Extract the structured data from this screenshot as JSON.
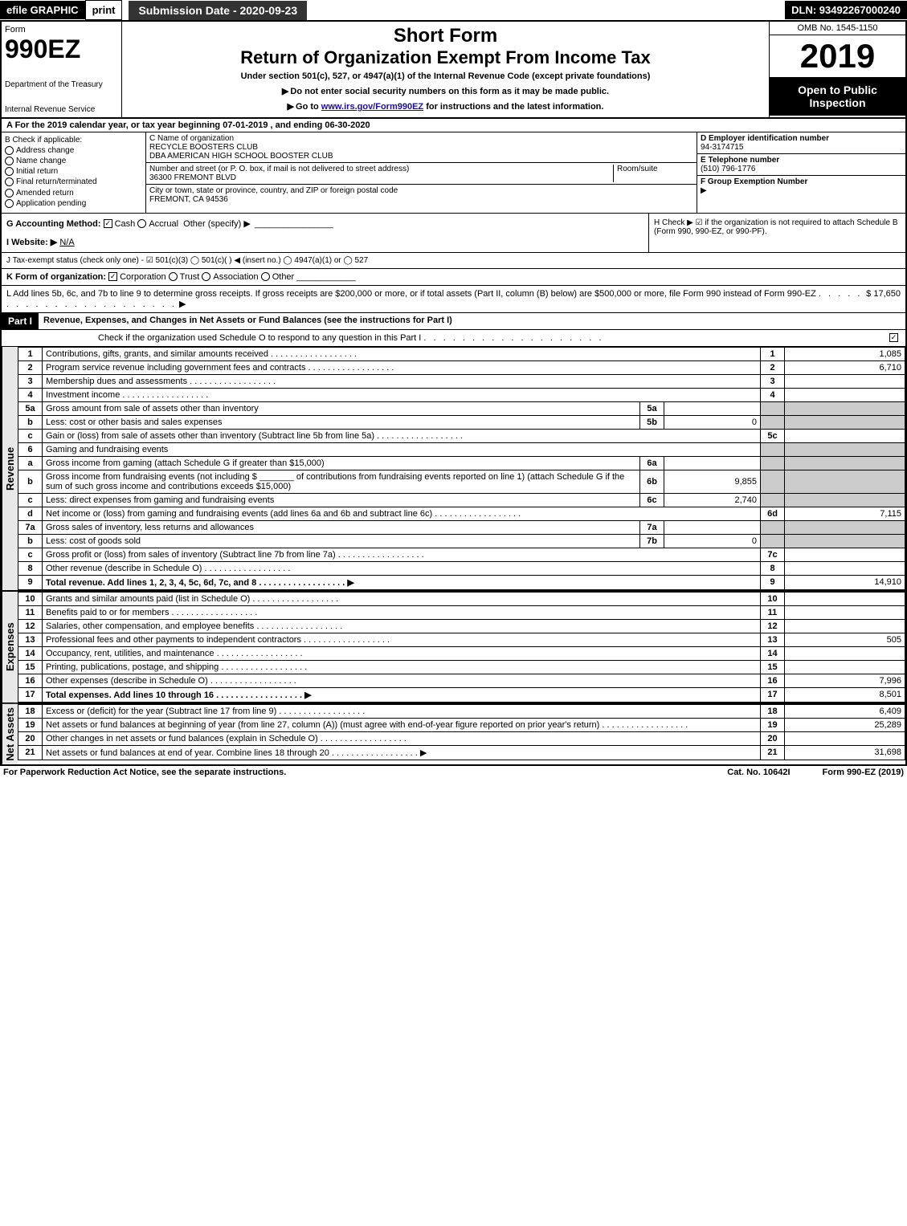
{
  "topbar": {
    "efile": "efile GRAPHIC",
    "print": "print",
    "subdate": "Submission Date - 2020-09-23",
    "dln": "DLN: 93492267000240"
  },
  "header": {
    "form_label": "Form",
    "form_num": "990EZ",
    "dept1": "Department of the Treasury",
    "dept2": "Internal Revenue Service",
    "short": "Short Form",
    "title": "Return of Organization Exempt From Income Tax",
    "sub1": "Under section 501(c), 527, or 4947(a)(1) of the Internal Revenue Code (except private foundations)",
    "sub2": "Do not enter social security numbers on this form as it may be made public.",
    "sub3_pre": "Go to ",
    "sub3_link": "www.irs.gov/Form990EZ",
    "sub3_post": " for instructions and the latest information.",
    "omb": "OMB No. 1545-1150",
    "year": "2019",
    "open": "Open to Public Inspection"
  },
  "rowA": "A For the 2019 calendar year, or tax year beginning 07-01-2019 , and ending 06-30-2020",
  "colB": {
    "label": "B Check if applicable:",
    "opts": [
      "Address change",
      "Name change",
      "Initial return",
      "Final return/terminated",
      "Amended return",
      "Application pending"
    ]
  },
  "colC": {
    "name_lbl": "C Name of organization",
    "name1": "RECYCLE BOOSTERS CLUB",
    "name2": "DBA AMERICAN HIGH SCHOOL BOOSTER CLUB",
    "addr_lbl": "Number and street (or P. O. box, if mail is not delivered to street address)",
    "room_lbl": "Room/suite",
    "addr": "36300 FREMONT BLVD",
    "city_lbl": "City or town, state or province, country, and ZIP or foreign postal code",
    "city": "FREMONT, CA  94536"
  },
  "colD": {
    "ein_lbl": "D Employer identification number",
    "ein": "94-3174715",
    "tel_lbl": "E Telephone number",
    "tel": "(510) 796-1776",
    "grp_lbl": "F Group Exemption Number"
  },
  "rowG": {
    "label": "G Accounting Method:",
    "cash": "Cash",
    "accrual": "Accrual",
    "other": "Other (specify)"
  },
  "rowH": "H Check ▶ ☑ if the organization is not required to attach Schedule B (Form 990, 990-EZ, or 990-PF).",
  "rowI": {
    "label": "I Website: ▶",
    "val": "N/A"
  },
  "rowJ": "J Tax-exempt status (check only one) - ☑ 501(c)(3)  ◯ 501(c)(  ) ◀ (insert no.)  ◯ 4947(a)(1) or  ◯ 527",
  "rowK": {
    "label": "K Form of organization:",
    "corp": "Corporation",
    "trust": "Trust",
    "assoc": "Association",
    "other": "Other"
  },
  "rowL": {
    "text": "L Add lines 5b, 6c, and 7b to line 9 to determine gross receipts. If gross receipts are $200,000 or more, or if total assets (Part II, column (B) below) are $500,000 or more, file Form 990 instead of Form 990-EZ",
    "val": "$ 17,650"
  },
  "part1": {
    "label": "Part I",
    "title": "Revenue, Expenses, and Changes in Net Assets or Fund Balances (see the instructions for Part I)",
    "checknote": "Check if the organization used Schedule O to respond to any question in this Part I"
  },
  "sections": {
    "revenue": "Revenue",
    "expenses": "Expenses",
    "netassets": "Net Assets"
  },
  "lines": [
    {
      "n": "1",
      "desc": "Contributions, gifts, grants, and similar amounts received",
      "num": "1",
      "val": "1,085"
    },
    {
      "n": "2",
      "desc": "Program service revenue including government fees and contracts",
      "num": "2",
      "val": "6,710"
    },
    {
      "n": "3",
      "desc": "Membership dues and assessments",
      "num": "3",
      "val": ""
    },
    {
      "n": "4",
      "desc": "Investment income",
      "num": "4",
      "val": ""
    },
    {
      "n": "5a",
      "desc": "Gross amount from sale of assets other than inventory",
      "subln": "5a",
      "subval": ""
    },
    {
      "n": "b",
      "desc": "Less: cost or other basis and sales expenses",
      "subln": "5b",
      "subval": "0"
    },
    {
      "n": "c",
      "desc": "Gain or (loss) from sale of assets other than inventory (Subtract line 5b from line 5a)",
      "num": "5c",
      "val": ""
    },
    {
      "n": "6",
      "desc": "Gaming and fundraising events"
    },
    {
      "n": "a",
      "desc": "Gross income from gaming (attach Schedule G if greater than $15,000)",
      "subln": "6a",
      "subval": ""
    },
    {
      "n": "b",
      "desc": "Gross income from fundraising events (not including $ _______ of contributions from fundraising events reported on line 1) (attach Schedule G if the sum of such gross income and contributions exceeds $15,000)",
      "subln": "6b",
      "subval": "9,855"
    },
    {
      "n": "c",
      "desc": "Less: direct expenses from gaming and fundraising events",
      "subln": "6c",
      "subval": "2,740"
    },
    {
      "n": "d",
      "desc": "Net income or (loss) from gaming and fundraising events (add lines 6a and 6b and subtract line 6c)",
      "num": "6d",
      "val": "7,115"
    },
    {
      "n": "7a",
      "desc": "Gross sales of inventory, less returns and allowances",
      "subln": "7a",
      "subval": ""
    },
    {
      "n": "b",
      "desc": "Less: cost of goods sold",
      "subln": "7b",
      "subval": "0"
    },
    {
      "n": "c",
      "desc": "Gross profit or (loss) from sales of inventory (Subtract line 7b from line 7a)",
      "num": "7c",
      "val": ""
    },
    {
      "n": "8",
      "desc": "Other revenue (describe in Schedule O)",
      "num": "8",
      "val": ""
    },
    {
      "n": "9",
      "desc": "Total revenue. Add lines 1, 2, 3, 4, 5c, 6d, 7c, and 8",
      "num": "9",
      "val": "14,910",
      "bold": true,
      "arrow": true
    }
  ],
  "exp_lines": [
    {
      "n": "10",
      "desc": "Grants and similar amounts paid (list in Schedule O)",
      "num": "10",
      "val": ""
    },
    {
      "n": "11",
      "desc": "Benefits paid to or for members",
      "num": "11",
      "val": ""
    },
    {
      "n": "12",
      "desc": "Salaries, other compensation, and employee benefits",
      "num": "12",
      "val": ""
    },
    {
      "n": "13",
      "desc": "Professional fees and other payments to independent contractors",
      "num": "13",
      "val": "505"
    },
    {
      "n": "14",
      "desc": "Occupancy, rent, utilities, and maintenance",
      "num": "14",
      "val": ""
    },
    {
      "n": "15",
      "desc": "Printing, publications, postage, and shipping",
      "num": "15",
      "val": ""
    },
    {
      "n": "16",
      "desc": "Other expenses (describe in Schedule O)",
      "num": "16",
      "val": "7,996"
    },
    {
      "n": "17",
      "desc": "Total expenses. Add lines 10 through 16",
      "num": "17",
      "val": "8,501",
      "bold": true,
      "arrow": true
    }
  ],
  "na_lines": [
    {
      "n": "18",
      "desc": "Excess or (deficit) for the year (Subtract line 17 from line 9)",
      "num": "18",
      "val": "6,409"
    },
    {
      "n": "19",
      "desc": "Net assets or fund balances at beginning of year (from line 27, column (A)) (must agree with end-of-year figure reported on prior year's return)",
      "num": "19",
      "val": "25,289"
    },
    {
      "n": "20",
      "desc": "Other changes in net assets or fund balances (explain in Schedule O)",
      "num": "20",
      "val": ""
    },
    {
      "n": "21",
      "desc": "Net assets or fund balances at end of year. Combine lines 18 through 20",
      "num": "21",
      "val": "31,698",
      "arrow": true
    }
  ],
  "footer": {
    "left": "For Paperwork Reduction Act Notice, see the separate instructions.",
    "mid": "Cat. No. 10642I",
    "right": "Form 990-EZ (2019)"
  }
}
